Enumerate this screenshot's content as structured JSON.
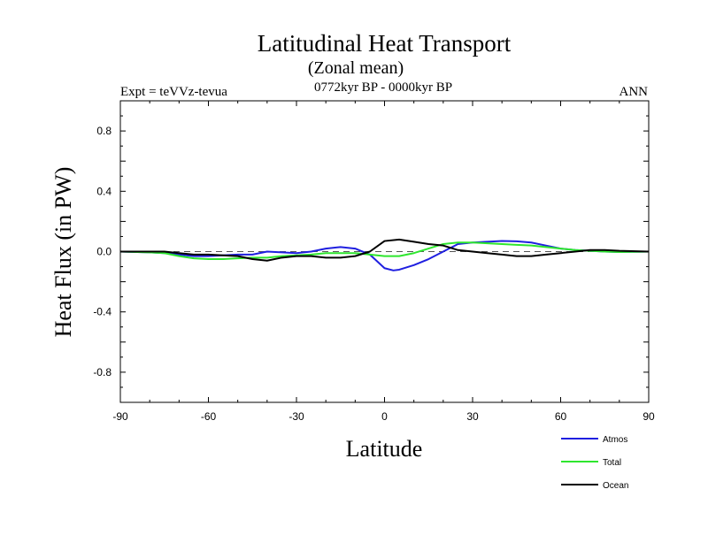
{
  "chart_data": {
    "type": "line",
    "title": "Latitudinal Heat Transport",
    "subtitle": "(Zonal mean)",
    "left_annotation": "Expt = teVVz-tevua",
    "center_annotation": "0772kyr BP - 0000kyr BP",
    "right_annotation": "ANN",
    "xlabel": "Latitude",
    "ylabel": "Heat Flux (in PW)",
    "xlim": [
      -90,
      90
    ],
    "ylim": [
      -1.0,
      1.0
    ],
    "x_ticks": [
      -90,
      -60,
      -30,
      0,
      30,
      60,
      90
    ],
    "x_tick_labels": [
      "-90",
      "-60",
      "-30",
      "0",
      "30",
      "60",
      "90"
    ],
    "y_ticks": [
      -0.8,
      -0.4,
      0.0,
      0.4,
      0.8
    ],
    "y_tick_labels": [
      "-0.8",
      "-0.4",
      "0.0",
      "0.4",
      "0.8"
    ],
    "grid": false,
    "zero_reference": "dashed",
    "legend_placement": "bottom-right",
    "series": [
      {
        "name": "Atmos",
        "color": "#1f1fe0",
        "x": [
          -90,
          -80,
          -75,
          -70,
          -65,
          -60,
          -55,
          -50,
          -45,
          -40,
          -35,
          -30,
          -25,
          -20,
          -15,
          -10,
          -5,
          0,
          3,
          5,
          10,
          15,
          20,
          25,
          30,
          35,
          40,
          45,
          50,
          55,
          60,
          65,
          70,
          75,
          80,
          90
        ],
        "y": [
          0.0,
          -0.005,
          -0.01,
          -0.02,
          -0.03,
          -0.03,
          -0.025,
          -0.02,
          -0.02,
          0.0,
          -0.005,
          -0.01,
          0.0,
          0.02,
          0.03,
          0.02,
          -0.02,
          -0.11,
          -0.125,
          -0.12,
          -0.09,
          -0.05,
          0.0,
          0.05,
          0.06,
          0.065,
          0.07,
          0.068,
          0.06,
          0.04,
          0.02,
          0.01,
          0.005,
          0.0,
          -0.003,
          0.0
        ]
      },
      {
        "name": "Total",
        "color": "#2ee62e",
        "x": [
          -90,
          -80,
          -75,
          -70,
          -65,
          -60,
          -55,
          -50,
          -45,
          -40,
          -35,
          -30,
          -25,
          -20,
          -15,
          -10,
          -5,
          0,
          5,
          10,
          15,
          20,
          25,
          30,
          35,
          40,
          45,
          50,
          55,
          60,
          65,
          70,
          75,
          80,
          90
        ],
        "y": [
          0.0,
          -0.005,
          -0.01,
          -0.03,
          -0.045,
          -0.05,
          -0.05,
          -0.045,
          -0.04,
          -0.04,
          -0.03,
          -0.025,
          -0.02,
          -0.01,
          -0.01,
          -0.01,
          -0.02,
          -0.03,
          -0.03,
          -0.01,
          0.02,
          0.05,
          0.06,
          0.06,
          0.055,
          0.05,
          0.045,
          0.04,
          0.03,
          0.02,
          0.01,
          0.005,
          0.0,
          -0.003,
          0.0
        ]
      },
      {
        "name": "Ocean",
        "color": "#000000",
        "x": [
          -90,
          -80,
          -75,
          -70,
          -65,
          -60,
          -55,
          -50,
          -45,
          -40,
          -35,
          -30,
          -25,
          -20,
          -15,
          -10,
          -5,
          0,
          5,
          10,
          15,
          20,
          25,
          30,
          35,
          40,
          45,
          50,
          55,
          60,
          65,
          70,
          75,
          80,
          90
        ],
        "y": [
          0.0,
          0.0,
          0.0,
          -0.01,
          -0.02,
          -0.02,
          -0.025,
          -0.03,
          -0.05,
          -0.06,
          -0.04,
          -0.03,
          -0.03,
          -0.04,
          -0.04,
          -0.03,
          0.0,
          0.07,
          0.08,
          0.065,
          0.05,
          0.04,
          0.01,
          0.0,
          -0.01,
          -0.02,
          -0.03,
          -0.03,
          -0.02,
          -0.01,
          0.0,
          0.01,
          0.01,
          0.005,
          0.0
        ]
      }
    ]
  }
}
